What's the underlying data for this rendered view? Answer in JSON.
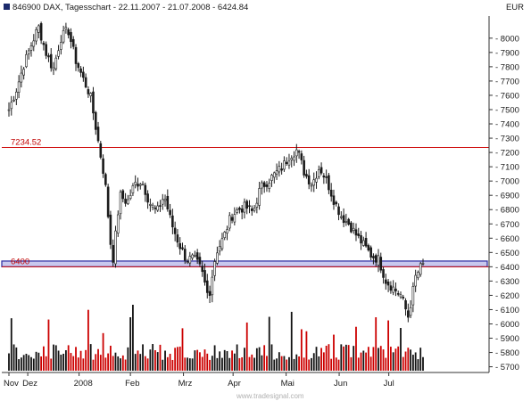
{
  "header": {
    "symbol_marker": "dark-blue-square",
    "title": "846900 DAX, Tagesschart - 22.11.2007 - 21.07.2008 - 6424.84",
    "currency": "EUR"
  },
  "watermark": "www.tradesignal.com",
  "chart_data": {
    "type": "candlestick",
    "instrument": "846900 DAX",
    "interval": "Tagesschart",
    "date_range": [
      "22.11.2007",
      "21.07.2008"
    ],
    "last_value": 6424.84,
    "currency": "EUR",
    "x_tick_labels": [
      {
        "label": "Nov",
        "date": "2007-11-22"
      },
      {
        "label": "Dez",
        "date": "2007-12-03"
      },
      {
        "label": "2008",
        "date": "2008-01-02"
      },
      {
        "label": "Feb",
        "date": "2008-02-01"
      },
      {
        "label": "Mrz",
        "date": "2008-03-03"
      },
      {
        "label": "Apr",
        "date": "2008-04-01"
      },
      {
        "label": "Mai",
        "date": "2008-05-02"
      },
      {
        "label": "Jun",
        "date": "2008-06-02"
      },
      {
        "label": "Jul",
        "date": "2008-07-01"
      }
    ],
    "y_ticks": [
      5700,
      5800,
      5900,
      6000,
      6100,
      6200,
      6300,
      6400,
      6500,
      6600,
      6700,
      6800,
      6900,
      7000,
      7100,
      7200,
      7300,
      7400,
      7500,
      7600,
      7700,
      7800,
      7900,
      8000
    ],
    "ylim": [
      5660,
      8080
    ],
    "grid": false,
    "y_axis_position": "right",
    "horizontal_lines": [
      {
        "label": "7234.52",
        "value": 7234.52,
        "color": "#d01010"
      },
      {
        "label": "6400",
        "value": 6400,
        "color": "#d01010"
      }
    ],
    "band": {
      "from": 6400,
      "to": 6440,
      "color": "#c8c8ee",
      "border": "#2a2aa0"
    },
    "price_path": [
      7500,
      7640,
      7810,
      7950,
      8080,
      7900,
      7780,
      8000,
      8060,
      7850,
      7720,
      7600,
      7300,
      7000,
      6420,
      6900,
      6850,
      6980,
      7000,
      6850,
      6780,
      6900,
      6700,
      6560,
      6450,
      6460,
      6380,
      6180,
      6500,
      6600,
      6750,
      6800,
      6820,
      6780,
      6950,
      7000,
      7050,
      7100,
      7180,
      7220,
      7050,
      6980,
      7100,
      7000,
      6860,
      6750,
      6700,
      6620,
      6550,
      6480,
      6450,
      6300,
      6250,
      6200,
      6050,
      6330,
      6424.84
    ],
    "volume": {
      "shown": true,
      "scale": "unlabeled",
      "colors": [
        "#111111",
        "#cc0000"
      ]
    }
  }
}
